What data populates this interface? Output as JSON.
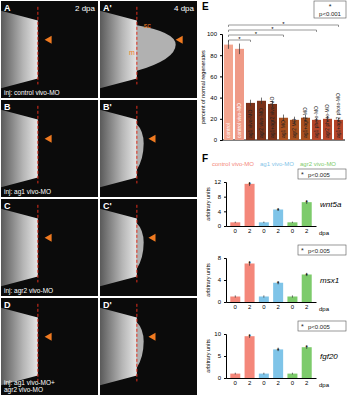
{
  "micrographs": {
    "rows": [
      {
        "caption": [
          "inj: control vivo-MO"
        ],
        "panels": [
          {
            "label": "A",
            "stage": "2 dpa"
          },
          {
            "label": "A'",
            "stage": "4 dpa",
            "marks": [
              "sc",
              "m"
            ]
          }
        ]
      },
      {
        "caption": [
          "inj: ag1 vivo-MO"
        ],
        "panels": [
          {
            "label": "B"
          },
          {
            "label": "B'"
          }
        ]
      },
      {
        "caption": [
          "inj: agr2 vivo-MO"
        ],
        "panels": [
          {
            "label": "C"
          },
          {
            "label": "C'"
          }
        ]
      },
      {
        "caption": [
          "inj: ag1 vivo-MO+",
          "agr2 vivo-MO"
        ],
        "panels": [
          {
            "label": "D"
          },
          {
            "label": "D'"
          }
        ]
      }
    ]
  },
  "chart_data": [
    {
      "type": "bar",
      "panel": "E",
      "y_label": "percent of normal regenerates",
      "categories": [
        "control",
        "control vivo-MO",
        "ag1 vivo-MO",
        "agr2 vivo-MO",
        "ag1+agr2 vivo-MO",
        "ag1 MO",
        "agr2 MO",
        "ag1+agr2 MO",
        "ag1 photo-MO",
        "agr2 photo-MO",
        "ag1+agr2 photo-MO"
      ],
      "values": [
        90,
        86,
        35,
        37,
        34,
        21,
        19,
        21,
        19,
        20,
        19
      ],
      "errors": [
        4,
        5,
        3,
        3,
        3,
        3,
        3,
        3,
        2,
        3,
        2
      ],
      "colors": [
        "#f3a58f",
        "#ef9a86",
        "#7b3219",
        "#7b3219",
        "#7b3219",
        "#a8501f",
        "#a8501f",
        "#a8501f",
        "#b5452a",
        "#b5452a",
        "#b5452a"
      ],
      "ylim": [
        0,
        100
      ],
      "yticks": [
        0,
        20,
        40,
        60,
        80,
        100
      ],
      "key": {
        "symbol": "*",
        "text": "p<0.001"
      },
      "annotations": [
        {
          "text": "*",
          "from": 0,
          "to": 2
        },
        {
          "text": "*",
          "from": 0,
          "to": 5
        },
        {
          "text": "*",
          "from": 0,
          "to": 8
        },
        {
          "text": "*",
          "from": 0,
          "to": 10
        }
      ]
    },
    {
      "type": "bar",
      "panel": "F",
      "title": "wnt5a",
      "y_label": "arbitrary units",
      "x_label": "dpa",
      "legend": "top",
      "categories": [
        "0",
        "2"
      ],
      "series": [
        {
          "name": "control vivo-MO",
          "color": "#f4877a",
          "values": [
            1,
            11.5
          ],
          "errors": [
            0.2,
            0.6
          ]
        },
        {
          "name": "ag1 vivo-MO",
          "color": "#7fc4e8",
          "values": [
            1,
            4.5
          ],
          "errors": [
            0.2,
            0.4
          ]
        },
        {
          "name": "agr2 vivo-MO",
          "color": "#7dcb6b",
          "values": [
            1,
            6.5
          ],
          "errors": [
            0.2,
            0.5
          ]
        }
      ],
      "ylim": [
        0,
        12
      ],
      "yticks": [
        0,
        4,
        8,
        12
      ],
      "key": {
        "symbol": "*",
        "text": "p<0.005"
      },
      "annotations": [
        {
          "text": "*",
          "series": 0,
          "index": 1
        },
        {
          "text": "*",
          "series": 1,
          "index": 1
        },
        {
          "text": "*",
          "series": 2,
          "index": 1
        }
      ]
    },
    {
      "type": "bar",
      "title": "msx1",
      "y_label": "arbitrary units",
      "x_label": "dpa",
      "categories": [
        "0",
        "2"
      ],
      "series": [
        {
          "color": "#f4877a",
          "values": [
            1,
            7
          ],
          "errors": [
            0.2,
            0.4
          ]
        },
        {
          "color": "#7fc4e8",
          "values": [
            1,
            3.5
          ],
          "errors": [
            0.2,
            0.3
          ]
        },
        {
          "color": "#7dcb6b",
          "values": [
            1,
            5
          ],
          "errors": [
            0.2,
            0.3
          ]
        }
      ],
      "ylim": [
        0,
        8
      ],
      "yticks": [
        0,
        4,
        8
      ],
      "key": {
        "symbol": "*",
        "text": "p<0.005"
      },
      "annotations": [
        {
          "text": "*",
          "series": 0,
          "index": 1
        },
        {
          "text": "*",
          "series": 1,
          "index": 1
        },
        {
          "text": "*",
          "series": 2,
          "index": 1
        }
      ]
    },
    {
      "type": "bar",
      "title": "fgf20",
      "y_label": "arbitrary units",
      "x_label": "dpa",
      "categories": [
        "0",
        "2"
      ],
      "series": [
        {
          "color": "#f4877a",
          "values": [
            1,
            9.5
          ],
          "errors": [
            0.2,
            0.4
          ]
        },
        {
          "color": "#7fc4e8",
          "values": [
            1,
            6.5
          ],
          "errors": [
            0.2,
            0.4
          ]
        },
        {
          "color": "#7dcb6b",
          "values": [
            1,
            7
          ],
          "errors": [
            0.2,
            0.4
          ]
        }
      ],
      "ylim": [
        0,
        10
      ],
      "yticks": [
        0,
        5,
        10
      ],
      "key": {
        "symbol": "*",
        "text": "p<0.005"
      },
      "annotations": [
        {
          "text": "*",
          "series": 0,
          "index": 1
        },
        {
          "text": "*",
          "series": 1,
          "index": 1
        },
        {
          "text": "*",
          "series": 2,
          "index": 1
        }
      ]
    }
  ]
}
